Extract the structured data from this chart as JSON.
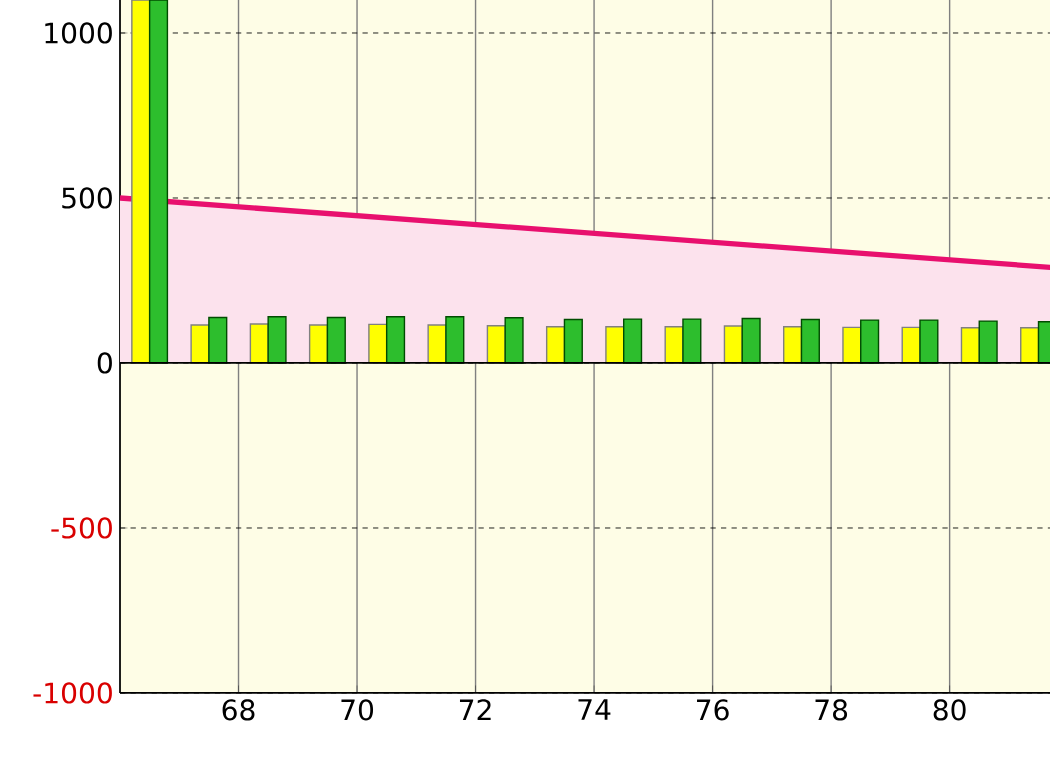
{
  "chart_data": {
    "type": "bar",
    "xlim": [
      66,
      82.2
    ],
    "ylim": [
      -1000,
      1100
    ],
    "xticks": [
      68,
      70,
      72,
      74,
      76,
      78,
      80
    ],
    "yticks": [
      -1000,
      -500,
      0,
      500,
      1000
    ],
    "grid": true,
    "ref_lines": [
      {
        "axis": "y",
        "value": 0,
        "color": "#000000"
      }
    ],
    "series": [
      {
        "type": "area",
        "color": "#e8106e",
        "x": [
          66,
          82.2
        ],
        "values": [
          500,
          283
        ]
      },
      {
        "color": "#ffff00",
        "x": [
          66.5,
          67.5,
          68.5,
          69.5,
          70.5,
          71.5,
          72.5,
          73.5,
          74.5,
          75.5,
          76.5,
          77.5,
          78.5,
          79.5,
          80.5,
          81.5
        ],
        "values": [
          1100,
          115,
          118,
          115,
          117,
          115,
          113,
          110,
          110,
          110,
          112,
          110,
          108,
          108,
          107,
          107
        ]
      },
      {
        "color": "#2dbe2d",
        "x": [
          66.5,
          67.5,
          68.5,
          69.5,
          70.5,
          71.5,
          72.5,
          73.5,
          74.5,
          75.5,
          76.5,
          77.5,
          78.5,
          79.5,
          80.5,
          81.5
        ],
        "values": [
          1100,
          138,
          140,
          138,
          140,
          140,
          137,
          132,
          133,
          133,
          135,
          132,
          130,
          130,
          127,
          125
        ]
      }
    ]
  }
}
